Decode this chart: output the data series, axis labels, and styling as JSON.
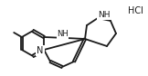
{
  "bg_color": "#ffffff",
  "line_color": "#1a1a1a",
  "line_width": 1.3,
  "text_color": "#1a1a1a",
  "font_size": 6.5,
  "figsize": [
    1.62,
    0.84
  ],
  "dpi": 100,
  "NH_label": "NH",
  "HCl_label": "HCl",
  "N_label": "N",
  "NH_bridge_label": "NH"
}
